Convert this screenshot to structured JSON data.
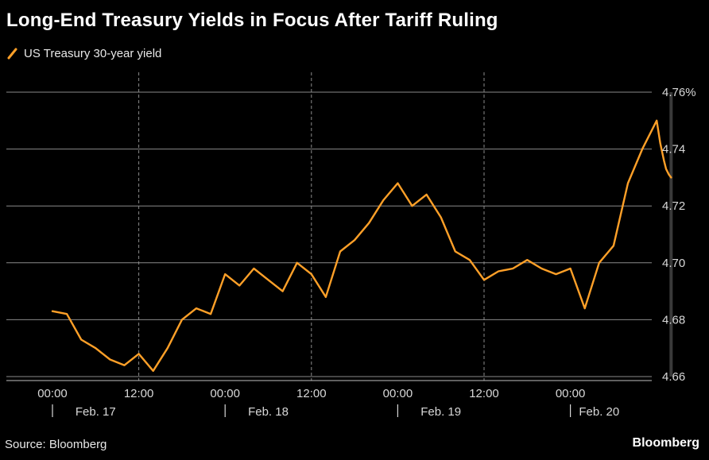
{
  "chart_data": {
    "type": "line",
    "title": "Long-End Treasury Yields in Focus After Tariff Ruling",
    "series": [
      {
        "name": "US Treasury 30-year yield",
        "color": "#ffa028",
        "hours": [
          0,
          2,
          4,
          6,
          8,
          10,
          12,
          14,
          16,
          18,
          20,
          22,
          24,
          26,
          28,
          30,
          32,
          34,
          36,
          38,
          40,
          42,
          44,
          46,
          48,
          50,
          52,
          54,
          56,
          58,
          60,
          62,
          64,
          66,
          68,
          70,
          72,
          74,
          76,
          78,
          80,
          82,
          84,
          84.5,
          85,
          85.3,
          85.7,
          86
        ],
        "values": [
          4.683,
          4.682,
          4.673,
          4.67,
          4.666,
          4.664,
          4.668,
          4.662,
          4.67,
          4.68,
          4.684,
          4.682,
          4.696,
          4.692,
          4.698,
          4.694,
          4.69,
          4.7,
          4.696,
          4.688,
          4.704,
          4.708,
          4.714,
          4.722,
          4.728,
          4.72,
          4.724,
          4.716,
          4.704,
          4.701,
          4.694,
          4.697,
          4.698,
          4.701,
          4.698,
          4.696,
          4.698,
          4.684,
          4.7,
          4.706,
          4.728,
          4.74,
          4.75,
          4.742,
          4.736,
          4.733,
          4.731,
          4.73
        ]
      }
    ],
    "y_ticks": [
      "4.76%",
      "4.74",
      "4.72",
      "4.70",
      "4.68",
      "4.66"
    ],
    "y_tick_values": [
      4.76,
      4.74,
      4.72,
      4.7,
      4.68,
      4.66
    ],
    "ylim": [
      4.66,
      4.76
    ],
    "x_time_labels": [
      "00:00",
      "12:00",
      "00:00",
      "12:00",
      "00:00",
      "12:00",
      "00:00"
    ],
    "x_time_hours": [
      0,
      12,
      24,
      36,
      48,
      60,
      72
    ],
    "x_date_labels": [
      "Feb. 17",
      "Feb. 18",
      "Feb. 19",
      "Feb. 20"
    ],
    "x_date_hours": [
      6,
      30,
      54,
      76
    ],
    "day_boundaries_hours": [
      12,
      36,
      60
    ],
    "grid": true,
    "legend": "top-left"
  },
  "footer": {
    "source": "Source: Bloomberg",
    "brand": "Bloomberg"
  },
  "colors": {
    "line": "#ffa028",
    "grid": "#8a8a8a",
    "background": "#000000"
  }
}
